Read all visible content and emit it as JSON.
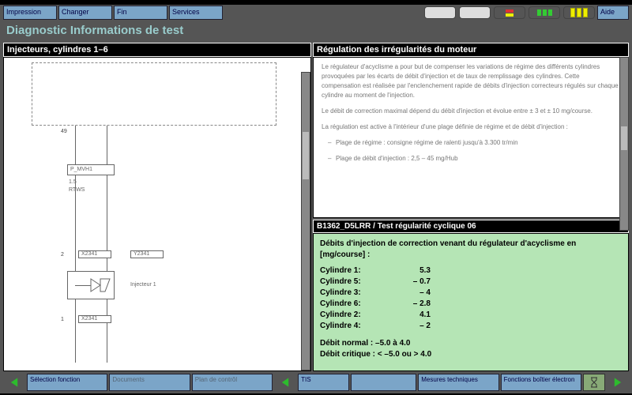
{
  "menubar": {
    "items": [
      "Impression",
      "Changer",
      "Fin",
      "Services"
    ],
    "aide": "Aide"
  },
  "title": "Diagnostic  Informations de test",
  "left": {
    "header": "Injecteurs, cylindres 1–6",
    "labels": {
      "num49": "49",
      "p_mvh": "P_MVH1",
      "val15": "1.5",
      "rtws": "RTWS",
      "num2": "2",
      "x2341a": "X2341",
      "y2341": "Y2341",
      "injecteur": "Injecteur 1",
      "num1": "1",
      "x2341b": "X2341"
    }
  },
  "right": {
    "header": "Régulation des irrégularités du moteur",
    "p1": "Le régulateur d'acyclisme a pour but de compenser les variations de régime des différents cylindres provoquées par les écarts de débit d'injection et de taux de remplissage des cylindres. Cette compensation est réalisée par l'enclenchement rapide de débits d'injection correcteurs régulés sur chaque cylindre au moment de l'injection.",
    "p2": "Le débit de correction maximal dépend du débit d'injection et évolue entre ± 3 et ± 10 mg/course.",
    "p3": "La régulation est active à l'intérieur d'une plage définie de régime et de débit d'injection :",
    "b1": "Plage de régime : consigne régime de ralenti jusqu'à 3.300 tr/min",
    "b2": "Plage de débit d'injection : 2,5 – 45 mg/Hub"
  },
  "result": {
    "header": "B1362_D5LRR / Test régularité cyclique 06",
    "intro": "Débits d'injection de correction venant du régulateur d'acyclisme en [mg/course] :",
    "rows": [
      {
        "lab": "Cylindre 1:",
        "val": "5.3"
      },
      {
        "lab": "Cylindre 5:",
        "val": "– 0.7"
      },
      {
        "lab": "Cylindre 3:",
        "val": "– 4"
      },
      {
        "lab": "Cylindre 6:",
        "val": "– 2.8"
      },
      {
        "lab": "Cylindre 2:",
        "val": "4.1"
      },
      {
        "lab": "Cylindre 4:",
        "val": "– 2"
      }
    ],
    "normal": "Débit normal : –5.0 à 4.0",
    "critique": "Débit critique : < –5.0 ou > 4.0"
  },
  "bottom": {
    "items": [
      "Sélection fonction",
      "Documents",
      "Plan de contrôl",
      "",
      "TIS",
      "",
      "Mesures techniques",
      "Fonctions boîtier électron"
    ]
  },
  "colors": {
    "panel_bg": "#555555",
    "menu_btn": "#7ba5c8",
    "result_bg": "#b5e5b5",
    "arrow": "#2dbb2d"
  }
}
